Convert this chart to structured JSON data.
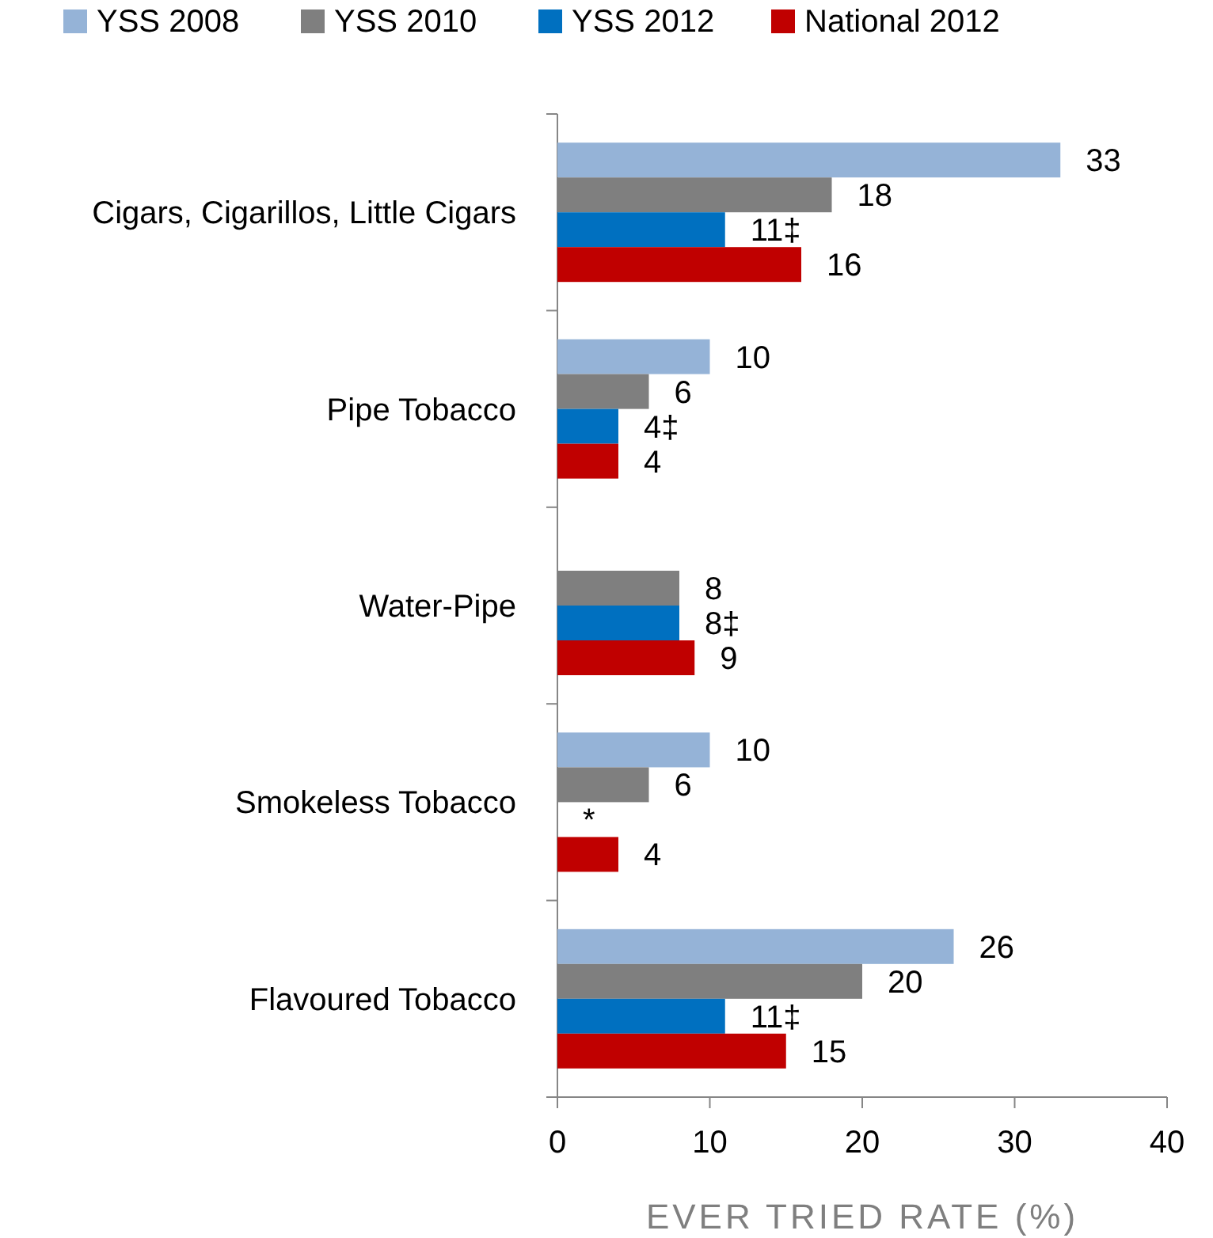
{
  "chart_data": {
    "type": "bar",
    "orientation": "horizontal",
    "xlabel": "EVER TRIED RATE (%)",
    "categories": [
      "Cigars, Cigarillos, Little Cigars",
      "Pipe Tobacco",
      "Water-Pipe",
      "Smokeless Tobacco",
      "Flavoured Tobacco"
    ],
    "series": [
      {
        "name": "YSS 2008",
        "color": "#95b3d7",
        "values": [
          33,
          10,
          null,
          10,
          26
        ],
        "value_labels": [
          "33",
          "10",
          null,
          "10",
          "26"
        ]
      },
      {
        "name": "YSS 2010",
        "color": "#7f7f7f",
        "values": [
          18,
          6,
          8,
          6,
          20
        ],
        "value_labels": [
          "18",
          "6",
          "8",
          "6",
          "20"
        ]
      },
      {
        "name": "YSS 2012",
        "color": "#0070c0",
        "values": [
          11,
          4,
          8,
          null,
          11
        ],
        "value_labels": [
          "11‡",
          "4‡",
          "8‡",
          "*",
          "11‡"
        ]
      },
      {
        "name": "National 2012",
        "color": "#c00000",
        "values": [
          16,
          4,
          9,
          4,
          15
        ],
        "value_labels": [
          "16",
          "4",
          "9",
          "4",
          "15"
        ]
      }
    ],
    "xlim": [
      0,
      40
    ],
    "xticks": [
      0,
      10,
      20,
      30,
      40
    ],
    "grid": false,
    "legend": "top"
  }
}
